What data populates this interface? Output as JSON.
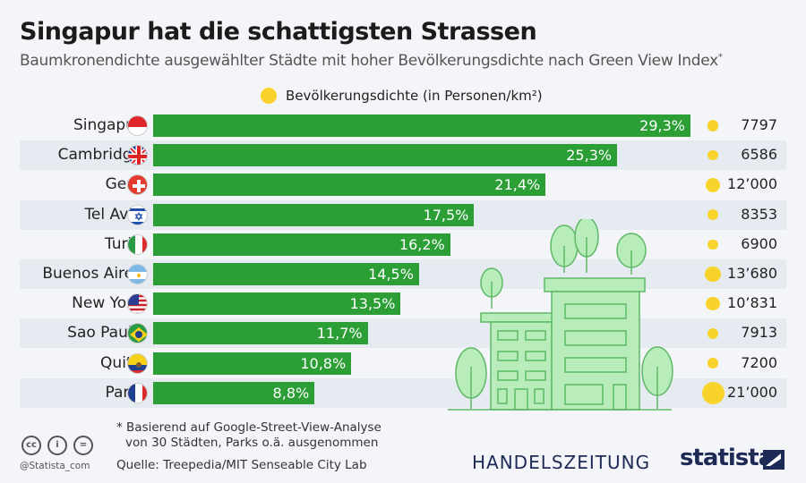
{
  "chart_data": {
    "type": "bar",
    "orientation": "horizontal",
    "title": "Singapur hat die schattigsten Strassen",
    "subtitle": "Baumkronendichte ausgewählter Städte mit hoher Bevölkerungsdichte nach Green View Index",
    "subtitle_mark": "*",
    "legend": "Bevölkerungsdichte (in Personen/km²)",
    "categories": [
      "Singapur",
      "Cambridge",
      "Genf",
      "Tel Aviv",
      "Turin",
      "Buenos Aires",
      "New York",
      "Sao Paulo",
      "Quito",
      "Paris"
    ],
    "values": [
      29.3,
      25.3,
      21.4,
      17.5,
      16.2,
      14.5,
      13.5,
      11.7,
      10.8,
      8.8
    ],
    "value_labels": [
      "29,3%",
      "25,3%",
      "21,4%",
      "17,5%",
      "16,2%",
      "14,5%",
      "13,5%",
      "11,7%",
      "10,8%",
      "8,8%"
    ],
    "density": [
      7797,
      6586,
      12000,
      8353,
      6900,
      13680,
      10831,
      7913,
      7200,
      21000
    ],
    "density_labels": [
      "7797",
      "6586",
      "12’000",
      "8353",
      "6900",
      "13’680",
      "10’831",
      "7913",
      "7200",
      "21’000"
    ],
    "flags": [
      "sg",
      "gb",
      "ch",
      "il",
      "it",
      "ar",
      "us",
      "br",
      "ec",
      "fr"
    ],
    "colors": {
      "bar": "#2b9f36",
      "density": "#f8d32c",
      "stripe": "#e6eaf1"
    }
  },
  "footer": {
    "note1": "* Basierend auf Google-Street-View-Analyse",
    "note2": "von 30 Städten, Parks o.ä. ausgenommen",
    "source": "Quelle: Treepedia/MIT Senseable City Lab",
    "handle": "@Statista_com",
    "brand1": "HANDELSZEITUNG",
    "brand2": "statista"
  },
  "icons": [
    "cc-icon",
    "by-icon",
    "nd-icon",
    "building-illustration",
    "statista-logo-icon"
  ]
}
